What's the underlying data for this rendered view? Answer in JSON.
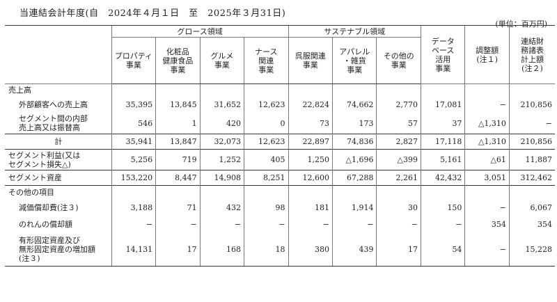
{
  "title": "当連結会計年度(自　2024年４月１日　至　2025年３月31日)",
  "unit": "(単位：百万円)",
  "group_headers": {
    "growth": "グロース領域",
    "sustainable": "サステナブル領域"
  },
  "columns": [
    [
      "プロパティ",
      "事業"
    ],
    [
      "化粧品",
      "健康食品",
      "事業"
    ],
    [
      "グルメ",
      "事業"
    ],
    [
      "ナース",
      "関連",
      "事業"
    ],
    [
      "呉服関連",
      "事業"
    ],
    [
      "アパレル",
      "・雑貨",
      "事業"
    ],
    [
      "その他の",
      "事業"
    ],
    [
      "データ",
      "ベース",
      "活用",
      "事業"
    ],
    [
      "調整額",
      "(注１)"
    ],
    [
      "連結財",
      "務諸表",
      "計上額",
      "(注２)"
    ]
  ],
  "rows": [
    {
      "label": [
        "売上高"
      ],
      "values": [
        "",
        "",
        "",
        "",
        "",
        "",
        "",
        "",
        "",
        ""
      ]
    },
    {
      "label": [
        "外部顧客への売上高"
      ],
      "indent": true,
      "values": [
        "35,395",
        "13,845",
        "31,652",
        "12,623",
        "22,824",
        "74,662",
        "2,770",
        "17,081",
        "−",
        "210,856"
      ]
    },
    {
      "label": [
        "セグメント間の内部",
        "売上高又は振替高"
      ],
      "indent": true,
      "values": [
        "546",
        "1",
        "420",
        "0",
        "73",
        "173",
        "57",
        "37",
        "△1,310",
        "−"
      ]
    },
    {
      "label": [
        "計"
      ],
      "center": true,
      "values": [
        "35,941",
        "13,847",
        "32,073",
        "12,623",
        "22,897",
        "74,836",
        "2,827",
        "17,118",
        "△1,310",
        "210,856"
      ]
    },
    {
      "label": [
        "セグメント利益(又は",
        "セグメント損失△)"
      ],
      "values": [
        "5,256",
        "719",
        "1,252",
        "405",
        "1,250",
        "△1,696",
        "△399",
        "5,161",
        "△61",
        "11,887"
      ]
    },
    {
      "label": [
        "セグメント資産"
      ],
      "values": [
        "153,220",
        "8,447",
        "14,908",
        "8,251",
        "12,600",
        "67,288",
        "2,261",
        "42,432",
        "3,051",
        "312,462"
      ]
    },
    {
      "label": [
        "その他の項目"
      ],
      "values": [
        "",
        "",
        "",
        "",
        "",
        "",
        "",
        "",
        "",
        ""
      ]
    },
    {
      "label": [
        "減価償却費(注３)"
      ],
      "indent": true,
      "values": [
        "3,188",
        "71",
        "432",
        "98",
        "181",
        "1,914",
        "30",
        "150",
        "−",
        "6,067"
      ]
    },
    {
      "label": [
        "のれんの償却額"
      ],
      "indent": true,
      "values": [
        "−",
        "−",
        "−",
        "−",
        "−",
        "−",
        "−",
        "−",
        "354",
        "354"
      ]
    },
    {
      "label": [
        "有形固定資産及び",
        "無形固定資産の増加額",
        "(注３)"
      ],
      "indent": true,
      "values": [
        "14,131",
        "17",
        "168",
        "18",
        "380",
        "439",
        "17",
        "54",
        "−",
        "15,228"
      ]
    }
  ]
}
